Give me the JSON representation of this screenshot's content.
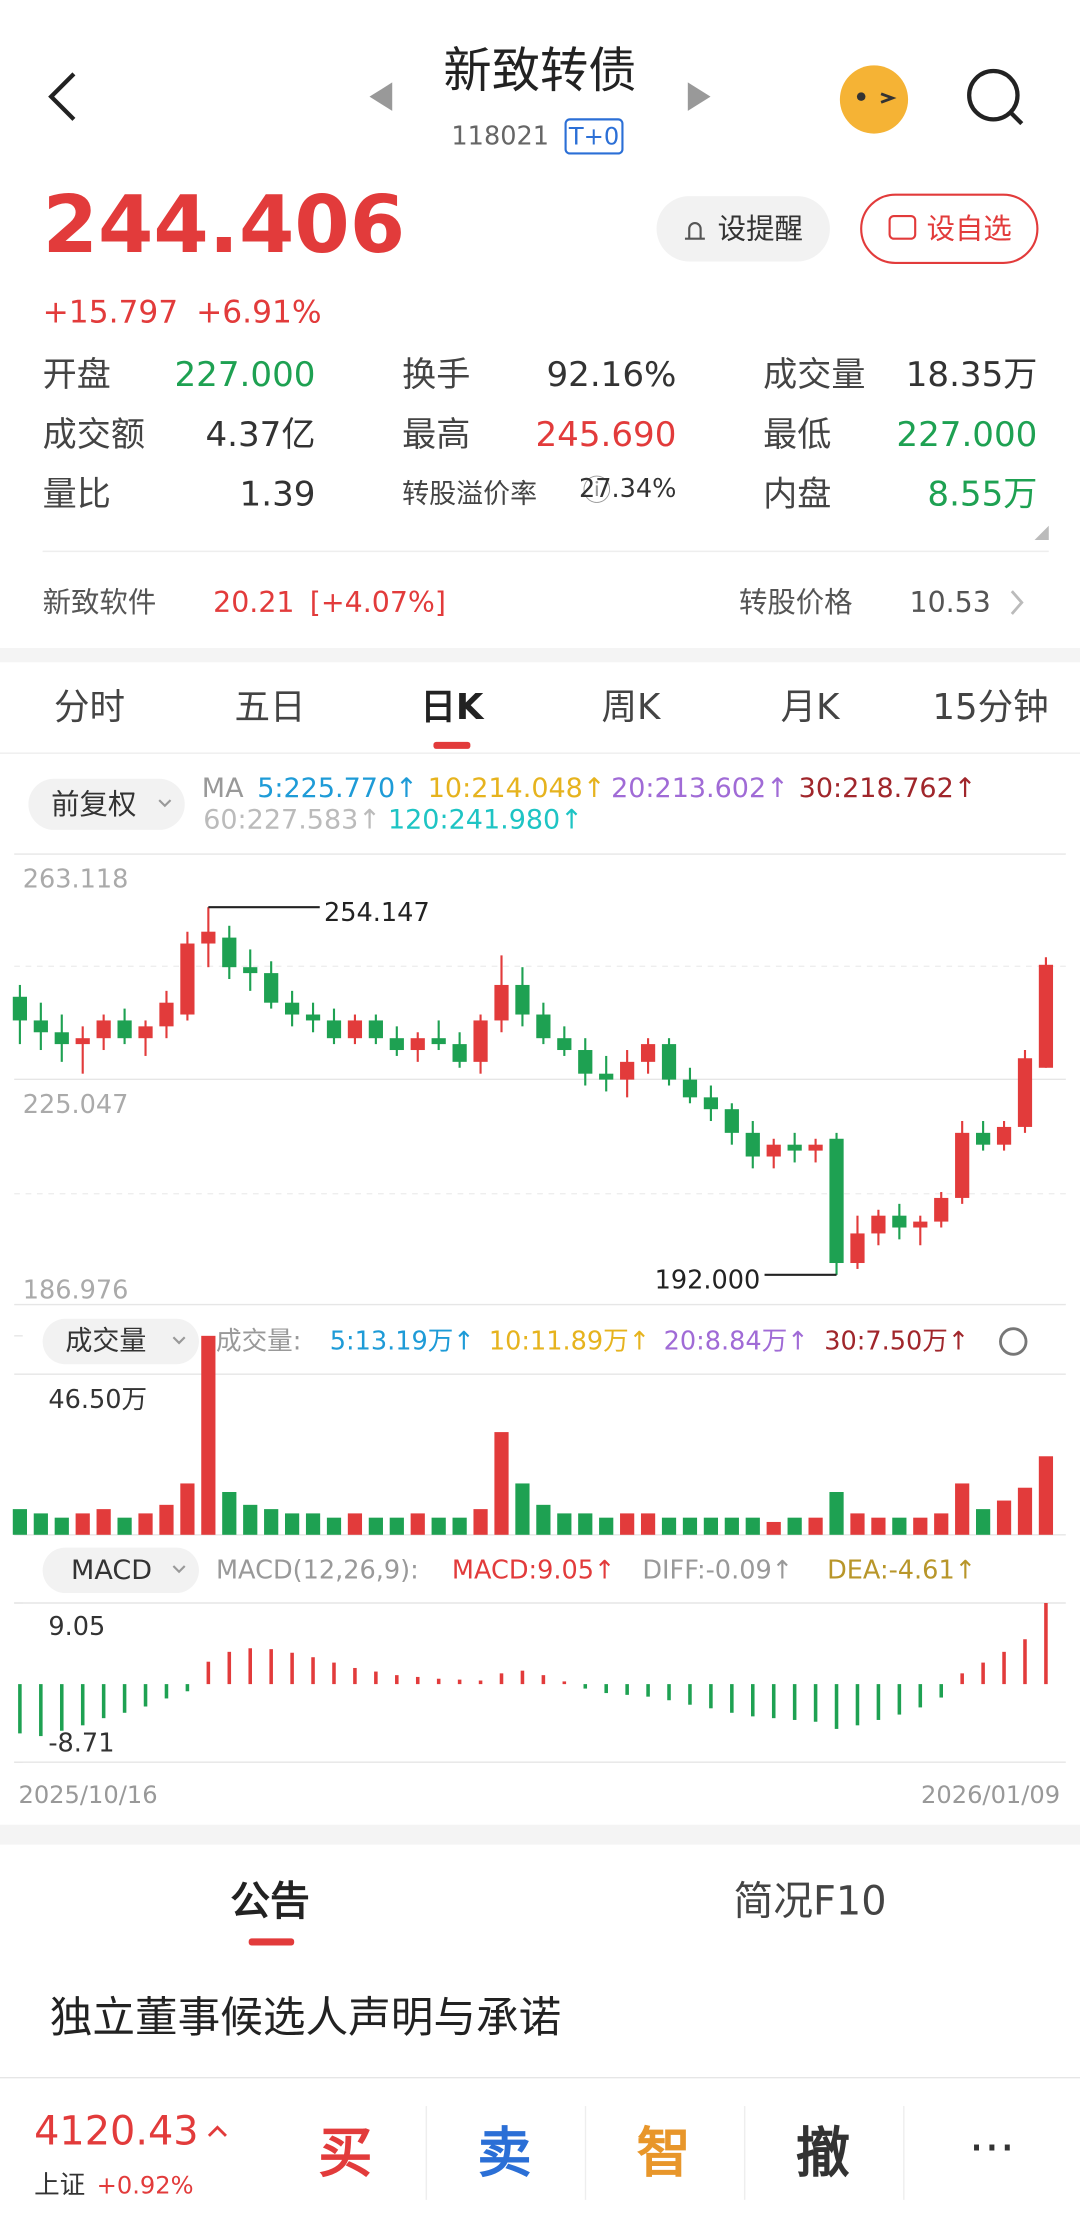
{
  "header": {
    "title": "新致转债",
    "code": "118021",
    "tag": "T+0"
  },
  "quote": {
    "price": "244.406",
    "change": "+15.797",
    "pct": "+6.91%"
  },
  "buttons": [
    "设提醒",
    "设自选"
  ],
  "stats": [
    [
      "开盘",
      "227.000"
    ],
    [
      "换手",
      "92.16%"
    ],
    [
      "成交量",
      "18.35万"
    ],
    [
      "成交额",
      "4.37亿"
    ],
    [
      "最高",
      "245.690"
    ],
    [
      "最低",
      "227.000"
    ],
    [
      "量比",
      "1.39"
    ],
    [
      "转股溢价率",
      "27.34%"
    ],
    [
      "内盘",
      "8.55万"
    ]
  ],
  "underlying": {
    "name": "新致软件",
    "price": "20.21",
    "pct": "[+4.07%]",
    "conv_label": "转股价格",
    "conv_value": "10.53"
  },
  "tabs": [
    "分时",
    "五日",
    "日K",
    "周K",
    "月K",
    "15分钟"
  ],
  "ma_legend": {
    "adj": "前复权",
    "prefix": "MA",
    "items": [
      {
        "text": "5:225.770↑",
        "color": "#1e9bd7"
      },
      {
        "text": "10:214.048↑",
        "color": "#e6b31e"
      },
      {
        "text": "20:213.602↑",
        "color": "#a06bd6"
      },
      {
        "text": "30:218.762↑",
        "color": "#a0262b"
      },
      {
        "text": "60:227.583↑",
        "color": "#bbbbbb"
      },
      {
        "text": "120:241.980↑",
        "color": "#1ec4c4"
      }
    ]
  },
  "kline": {
    "ylim": [
      186.976,
      263.118
    ],
    "yticks": [
      263.118,
      225.047,
      186.976
    ],
    "high_label": 254.147,
    "low_label": {
      "value": 192,
      "label": "192.000"
    },
    "up_color": "#e23b3b",
    "down_color": "#1ea152",
    "candles": [
      [
        239,
        241,
        231,
        235
      ],
      [
        235,
        238,
        230,
        233
      ],
      [
        233,
        236,
        228,
        231
      ],
      [
        231,
        234,
        226,
        232
      ],
      [
        232,
        236,
        230,
        235
      ],
      [
        235,
        237,
        231,
        232
      ],
      [
        232,
        235,
        229,
        234
      ],
      [
        234,
        240,
        232,
        238
      ],
      [
        236,
        250,
        235,
        248
      ],
      [
        248,
        254.147,
        244,
        250
      ],
      [
        249,
        251,
        242,
        244
      ],
      [
        244,
        247,
        240,
        243
      ],
      [
        243,
        245,
        237,
        238
      ],
      [
        238,
        240,
        234,
        236
      ],
      [
        236,
        238,
        233,
        235
      ],
      [
        235,
        237,
        231,
        232
      ],
      [
        232,
        236,
        231,
        235
      ],
      [
        235,
        236,
        231,
        232
      ],
      [
        232,
        234,
        229,
        230
      ],
      [
        230,
        233,
        228,
        232
      ],
      [
        232,
        235,
        230,
        231
      ],
      [
        231,
        233,
        227,
        228
      ],
      [
        228,
        236,
        226,
        235
      ],
      [
        235,
        246,
        233,
        241
      ],
      [
        241,
        244,
        234,
        236
      ],
      [
        236,
        238,
        231,
        232
      ],
      [
        232,
        234,
        229,
        230
      ],
      [
        230,
        232,
        224,
        226
      ],
      [
        226,
        229,
        223,
        225
      ],
      [
        225,
        230,
        222,
        228
      ],
      [
        228,
        232,
        226,
        231
      ],
      [
        231,
        232,
        224,
        225
      ],
      [
        225,
        227,
        221,
        222
      ],
      [
        222,
        224,
        218,
        220
      ],
      [
        220,
        221,
        214,
        216
      ],
      [
        216,
        218,
        210,
        212
      ],
      [
        212,
        215,
        210,
        214
      ],
      [
        214,
        216,
        211,
        213
      ],
      [
        213,
        215,
        211,
        214
      ],
      [
        215,
        216,
        192,
        194
      ],
      [
        194,
        202,
        193,
        199
      ],
      [
        199,
        203,
        197,
        202
      ],
      [
        202,
        204,
        198,
        200
      ],
      [
        200,
        202,
        197,
        201
      ],
      [
        201,
        206,
        200,
        205
      ],
      [
        205,
        218,
        204,
        216
      ],
      [
        216,
        218,
        213,
        214
      ],
      [
        214,
        218,
        213,
        217
      ],
      [
        217,
        230,
        216,
        228.609
      ],
      [
        227,
        245.69,
        227,
        244.406
      ]
    ]
  },
  "volume": {
    "label": "成交量",
    "prefix": "成交量:",
    "items": [
      {
        "text": "5:13.19万↑",
        "color": "#1e9bd7"
      },
      {
        "text": "10:11.89万↑",
        "color": "#e6b31e"
      },
      {
        "text": "20:8.84万↑",
        "color": "#a06bd6"
      },
      {
        "text": "30:7.50万↑",
        "color": "#a0262b"
      }
    ],
    "ylim": [
      0,
      46.5
    ],
    "yticks": [
      {
        "value": 46.5,
        "label": "46.50万"
      }
    ],
    "values": [
      6,
      5,
      4,
      5,
      6,
      4,
      5,
      7,
      12,
      46.5,
      10,
      7,
      6,
      5,
      5,
      4,
      5,
      4,
      4,
      5,
      4,
      4,
      6,
      24,
      12,
      7,
      5,
      5,
      4,
      5,
      5,
      4,
      4,
      4,
      4,
      4,
      3,
      4,
      4,
      10,
      5,
      4,
      4,
      4,
      5,
      12,
      6,
      8,
      11,
      18.35
    ]
  },
  "macd": {
    "label": "MACD",
    "prefix": "MACD(12,26,9):",
    "items": [
      {
        "text": "MACD:9.05↑",
        "color": "#e23b3b"
      },
      {
        "text": "DIFF:-0.09↑",
        "color": "#999999"
      },
      {
        "text": "DEA:-4.61↑",
        "color": "#b8962a"
      }
    ],
    "ylim": [
      -8.71,
      9.05
    ],
    "yticks": [
      9.05,
      -8.71
    ],
    "values": [
      -5.5,
      -5.8,
      -5.2,
      -4.6,
      -3.8,
      -3.2,
      -2.5,
      -1.6,
      -0.8,
      2.5,
      3.6,
      4.0,
      3.9,
      3.5,
      3.0,
      2.4,
      1.8,
      1.4,
      1.0,
      0.8,
      0.6,
      0.5,
      0.4,
      1.2,
      1.5,
      1.0,
      0.3,
      -0.5,
      -1.0,
      -1.2,
      -1.4,
      -1.8,
      -2.3,
      -2.7,
      -3.2,
      -3.6,
      -3.8,
      -4.0,
      -4.2,
      -5.0,
      -4.6,
      -4.0,
      -3.4,
      -2.6,
      -1.5,
      1.2,
      2.4,
      3.6,
      5.0,
      9.05
    ]
  },
  "dates": [
    "2025/10/16",
    "2026/01/09"
  ],
  "news": {
    "tabs": [
      "公告",
      "简况F10"
    ],
    "headline": "独立董事候选人声明与承诺"
  },
  "bottom": {
    "index_value": "4120.43",
    "index_name": "上证",
    "index_pct": "+0.92%",
    "actions": [
      "买",
      "卖",
      "智",
      "撤"
    ]
  }
}
